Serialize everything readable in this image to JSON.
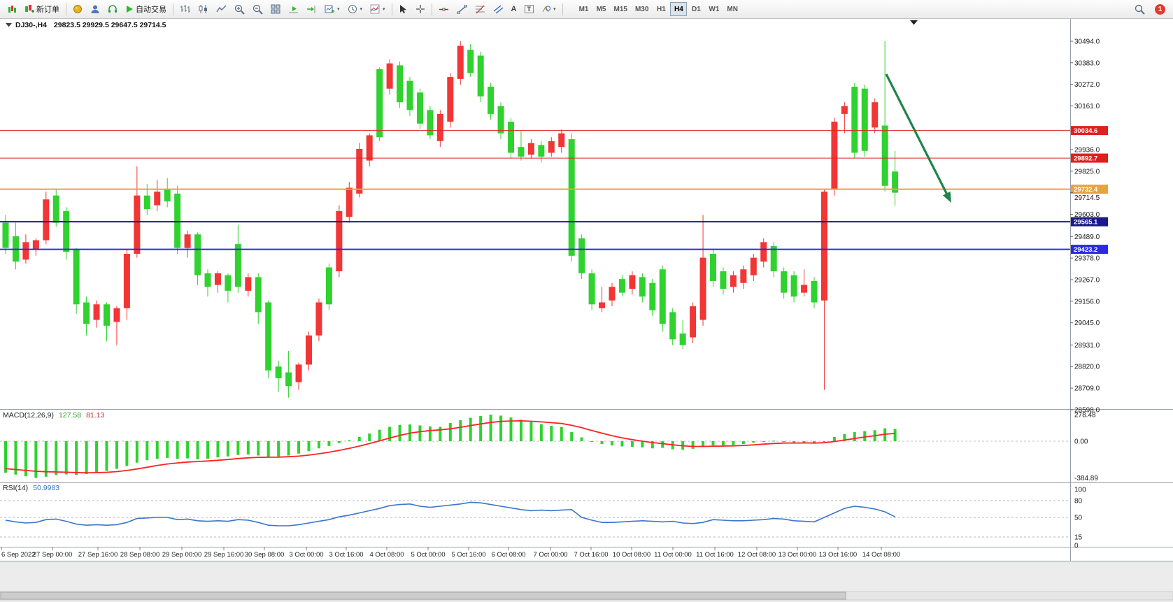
{
  "toolbar": {
    "new_order": "新订单",
    "auto_trading": "自动交易",
    "timeframes": [
      "M1",
      "M5",
      "M15",
      "M30",
      "H1",
      "H4",
      "D1",
      "W1",
      "MN"
    ],
    "active_timeframe": "H4",
    "notification_count": "1"
  },
  "icons": {
    "chevron": "▾",
    "letter_a": "A",
    "letter_t": "T"
  },
  "chart": {
    "symbol": "DJ30-,H4",
    "ohlc": "29823.5 29929.5 29647.5 29714.5"
  },
  "macd": {
    "name": "MACD(12,26,9)",
    "main": "127.58",
    "signal": "81.13"
  },
  "rsi": {
    "name": "RSI(14)",
    "value": "50.9983"
  },
  "colors": {
    "candle_up": "#f23535",
    "candle_down": "#2fd22f",
    "macd_hist": "#2fd22f",
    "macd_signal": "#ff2222",
    "rsi_line": "#3a76c9",
    "level_red": "#e01f1f",
    "level_orange": "#e8a33d",
    "level_navy": "#1a1a8c",
    "level_blue": "#2a2ae0",
    "arrow_green": "#1e8449"
  },
  "price_axis": {
    "ticks": [
      "30494.0",
      "30383.0",
      "30272.0",
      "30161.0",
      "29936.0",
      "29825.0",
      "29714.5",
      "29603.0",
      "29489.0",
      "29378.0",
      "29267.0",
      "29156.0",
      "29045.0",
      "28931.0",
      "28820.0",
      "28709.0",
      "28598.0"
    ]
  },
  "time_axis": [
    [
      "6 Sep 2022",
      2
    ],
    [
      "27 Sep 00:00",
      75
    ],
    [
      "27 Sep 16:00",
      140
    ],
    [
      "28 Sep 08:00",
      200
    ],
    [
      "29 Sep 00:00",
      260
    ],
    [
      "29 Sep 16:00",
      320
    ],
    [
      "30 Sep 08:00",
      378
    ],
    [
      "3 Oct 00:00",
      438
    ],
    [
      "3 Oct 16:00",
      495
    ],
    [
      "4 Oct 08:00",
      553
    ],
    [
      "5 Oct 00:00",
      612
    ],
    [
      "5 Oct 16:00",
      670
    ],
    [
      "6 Oct 08:00",
      727
    ],
    [
      "7 Oct 00:00",
      787
    ],
    [
      "7 Oct 16:00",
      845
    ],
    [
      "10 Oct 08:00",
      903
    ],
    [
      "11 Oct 00:00",
      962
    ],
    [
      "11 Oct 16:00",
      1022
    ],
    [
      "12 Oct 08:00",
      1082
    ],
    [
      "13 Oct 00:00",
      1140
    ],
    [
      "13 Oct 16:00",
      1198
    ],
    [
      "14 Oct 08:00",
      1260
    ]
  ],
  "chart_data": [
    {
      "type": "candlestick",
      "symbol": "DJ30-",
      "timeframe": "H4",
      "ohlc_current": {
        "open": 29823.5,
        "high": 29929.5,
        "low": 29647.5,
        "close": 29714.5
      },
      "price_axis_range": [
        28601,
        30609
      ],
      "levels": [
        {
          "price": 30034.6,
          "color": "#e01f1f",
          "width": 1
        },
        {
          "price": 29892.7,
          "color": "#e01f1f",
          "width": 1
        },
        {
          "price": 29732.4,
          "color": "#e8a33d",
          "width": 2
        },
        {
          "price": 29565.1,
          "color": "#1a1a8c",
          "width": 2
        },
        {
          "price": 29423.2,
          "color": "#2a2ae0",
          "width": 2
        }
      ],
      "arrow": {
        "from": [
          1267,
          106
        ],
        "to": [
          1360,
          290
        ],
        "color": "#1e8449"
      },
      "candles": [
        [
          29600,
          29400,
          29560,
          29430,
          "g"
        ],
        [
          29560,
          29320,
          29490,
          29360,
          "g"
        ],
        [
          29500,
          29350,
          29460,
          29370,
          "r"
        ],
        [
          29480,
          29390,
          29470,
          29420,
          "r"
        ],
        [
          29720,
          29450,
          29680,
          29470,
          "r"
        ],
        [
          29730,
          29540,
          29700,
          29560,
          "g"
        ],
        [
          29640,
          29370,
          29620,
          29410,
          "g"
        ],
        [
          29430,
          29090,
          29420,
          29140,
          "g"
        ],
        [
          29180,
          28980,
          29150,
          29040,
          "g"
        ],
        [
          29160,
          29020,
          29140,
          29060,
          "r"
        ],
        [
          29150,
          28950,
          29140,
          29030,
          "g"
        ],
        [
          29130,
          28930,
          29120,
          29050,
          "r"
        ],
        [
          29420,
          29060,
          29400,
          29120,
          "r"
        ],
        [
          29850,
          29380,
          29700,
          29400,
          "r"
        ],
        [
          29760,
          29600,
          29700,
          29630,
          "g"
        ],
        [
          29780,
          29620,
          29720,
          29650,
          "r"
        ],
        [
          29790,
          29640,
          29730,
          29670,
          "g"
        ],
        [
          29750,
          29400,
          29710,
          29430,
          "g"
        ],
        [
          29520,
          29380,
          29500,
          29430,
          "r"
        ],
        [
          29510,
          29240,
          29500,
          29290,
          "g"
        ],
        [
          29320,
          29180,
          29300,
          29230,
          "g"
        ],
        [
          29310,
          29200,
          29300,
          29240,
          "r"
        ],
        [
          29300,
          29150,
          29290,
          29210,
          "g"
        ],
        [
          29550,
          29200,
          29450,
          29230,
          "g"
        ],
        [
          29300,
          29180,
          29280,
          29210,
          "r"
        ],
        [
          29300,
          29040,
          29280,
          29100,
          "g"
        ],
        [
          29160,
          28760,
          29150,
          28800,
          "g"
        ],
        [
          28850,
          28690,
          28820,
          28760,
          "g"
        ],
        [
          28900,
          28660,
          28790,
          28720,
          "g"
        ],
        [
          28840,
          28700,
          28830,
          28740,
          "r"
        ],
        [
          29000,
          28800,
          28980,
          28830,
          "r"
        ],
        [
          29170,
          28950,
          29150,
          28980,
          "r"
        ],
        [
          29350,
          29110,
          29330,
          29140,
          "g"
        ],
        [
          29650,
          29280,
          29620,
          29310,
          "r"
        ],
        [
          29770,
          29560,
          29740,
          29590,
          "r"
        ],
        [
          29970,
          29690,
          29940,
          29710,
          "r"
        ],
        [
          30020,
          29850,
          30010,
          29880,
          "r"
        ],
        [
          30360,
          29980,
          30350,
          30000,
          "g"
        ],
        [
          30400,
          30220,
          30380,
          30250,
          "r"
        ],
        [
          30390,
          30150,
          30370,
          30180,
          "g"
        ],
        [
          30310,
          30110,
          30290,
          30140,
          "g"
        ],
        [
          30250,
          30040,
          30230,
          30070,
          "g"
        ],
        [
          30160,
          29990,
          30140,
          30010,
          "g"
        ],
        [
          30140,
          29950,
          30120,
          29980,
          "r"
        ],
        [
          30330,
          30050,
          30310,
          30080,
          "r"
        ],
        [
          30494,
          30270,
          30470,
          30300,
          "r"
        ],
        [
          30480,
          30310,
          30450,
          30330,
          "g"
        ],
        [
          30440,
          30180,
          30420,
          30210,
          "g"
        ],
        [
          30280,
          30090,
          30260,
          30120,
          "g"
        ],
        [
          30180,
          29990,
          30160,
          30020,
          "g"
        ],
        [
          30100,
          29890,
          30080,
          29920,
          "g"
        ],
        [
          30030,
          29880,
          29950,
          29900,
          "g"
        ],
        [
          29990,
          29890,
          29970,
          29910,
          "r"
        ],
        [
          29980,
          29870,
          29960,
          29900,
          "g"
        ],
        [
          30000,
          29900,
          29980,
          29920,
          "r"
        ],
        [
          30040,
          29920,
          30020,
          29950,
          "r"
        ],
        [
          30020,
          29360,
          29990,
          29390,
          "g"
        ],
        [
          29500,
          29270,
          29480,
          29300,
          "g"
        ],
        [
          29320,
          29110,
          29300,
          29140,
          "g"
        ],
        [
          29230,
          29100,
          29150,
          29120,
          "r"
        ],
        [
          29250,
          29130,
          29230,
          29160,
          "r"
        ],
        [
          29290,
          29180,
          29270,
          29200,
          "g"
        ],
        [
          29310,
          29190,
          29290,
          29220,
          "r"
        ],
        [
          29300,
          29150,
          29280,
          29180,
          "g"
        ],
        [
          29270,
          29080,
          29250,
          29110,
          "g"
        ],
        [
          29340,
          29000,
          29320,
          29040,
          "g"
        ],
        [
          29120,
          28930,
          29100,
          28960,
          "g"
        ],
        [
          29060,
          28910,
          28990,
          28930,
          "g"
        ],
        [
          29150,
          28940,
          29130,
          28970,
          "r"
        ],
        [
          29600,
          29030,
          29380,
          29060,
          "r"
        ],
        [
          29420,
          29230,
          29400,
          29260,
          "g"
        ],
        [
          29330,
          29190,
          29310,
          29220,
          "g"
        ],
        [
          29310,
          29200,
          29290,
          29230,
          "r"
        ],
        [
          29340,
          29220,
          29320,
          29250,
          "r"
        ],
        [
          29400,
          29260,
          29380,
          29290,
          "r"
        ],
        [
          29480,
          29330,
          29460,
          29360,
          "r"
        ],
        [
          29460,
          29280,
          29440,
          29310,
          "g"
        ],
        [
          29330,
          29170,
          29310,
          29200,
          "g"
        ],
        [
          29310,
          29150,
          29290,
          29180,
          "g"
        ],
        [
          29320,
          29180,
          29240,
          29200,
          "r"
        ],
        [
          29280,
          29120,
          29260,
          29150,
          "g"
        ],
        [
          29730,
          28700,
          29720,
          29160,
          "r"
        ],
        [
          30100,
          29700,
          30080,
          29730,
          "r"
        ],
        [
          30180,
          30020,
          30160,
          30120,
          "r"
        ],
        [
          30280,
          29890,
          30260,
          29920,
          "g"
        ],
        [
          30270,
          29900,
          30250,
          29930,
          "g"
        ],
        [
          30200,
          30020,
          30180,
          30050,
          "r"
        ],
        [
          30494,
          29720,
          30060,
          29750,
          "g"
        ],
        [
          29929.5,
          29647.5,
          29823.5,
          29714.5,
          "g"
        ]
      ]
    },
    {
      "type": "bar",
      "name": "MACD(12,26,9)",
      "axis_labels": [
        "278.48",
        "0.00",
        "-384.89"
      ],
      "values": [
        -330,
        -350,
        -368,
        -384.89,
        -372,
        -355,
        -348,
        -352,
        -345,
        -330,
        -312,
        -290,
        -260,
        -225,
        -200,
        -185,
        -175,
        -185,
        -180,
        -190,
        -185,
        -170,
        -160,
        -145,
        -140,
        -150,
        -165,
        -160,
        -150,
        -130,
        -105,
        -75,
        -50,
        -20,
        10,
        45,
        80,
        120,
        150,
        170,
        175,
        165,
        155,
        150,
        190,
        220,
        245,
        265,
        278.48,
        268,
        248,
        225,
        200,
        178,
        162,
        150,
        95,
        40,
        -5,
        -30,
        -45,
        -55,
        -60,
        -65,
        -75,
        -70,
        -85,
        -90,
        -80,
        -55,
        -45,
        -45,
        -40,
        -30,
        -15,
        0,
        5,
        -5,
        -15,
        -15,
        -25,
        0,
        45,
        75,
        95,
        105,
        115,
        135,
        127.58
      ],
      "signal_line": [
        -288,
        -297,
        -307,
        -315,
        -320,
        -322,
        -325,
        -329,
        -331,
        -330,
        -326,
        -319,
        -307,
        -291,
        -273,
        -255,
        -239,
        -228,
        -218,
        -213,
        -207,
        -200,
        -192,
        -182,
        -174,
        -169,
        -168,
        -167,
        -163,
        -157,
        -146,
        -132,
        -116,
        -96,
        -75,
        -51,
        -25,
        4,
        33,
        61,
        84,
        100,
        111,
        119,
        130,
        146,
        164,
        181,
        196,
        207,
        212,
        213,
        209,
        202,
        194,
        185,
        167,
        142,
        112,
        84,
        58,
        35,
        16,
        0,
        -15,
        -26,
        -38,
        -48,
        -55,
        -55,
        -53,
        -51,
        -49,
        -45,
        -39,
        -31,
        -24,
        -20,
        -19,
        -18,
        -20,
        -16,
        -4,
        12,
        28,
        44,
        58,
        73,
        81.13
      ]
    },
    {
      "type": "line",
      "name": "RSI(14)",
      "levels": [
        80,
        50,
        15
      ],
      "axis_labels": [
        "100",
        "80",
        "50",
        "15",
        "0"
      ],
      "values": [
        45,
        42,
        40,
        41,
        46,
        47,
        43,
        38,
        36,
        37,
        36,
        37,
        41,
        48,
        49,
        50,
        50,
        46,
        47,
        44,
        43,
        44,
        43,
        46,
        45,
        41,
        36,
        35,
        35,
        37,
        40,
        43,
        46,
        51,
        54,
        58,
        62,
        66,
        71,
        73,
        74,
        70,
        68,
        70,
        72,
        74,
        77,
        76,
        73,
        70,
        67,
        64,
        62,
        63,
        62,
        63,
        64,
        50,
        45,
        41,
        41,
        42,
        43,
        44,
        43,
        42,
        43,
        40,
        39,
        41,
        46,
        45,
        44,
        44,
        45,
        46,
        48,
        47,
        44,
        43,
        42,
        50,
        58,
        66,
        70,
        68,
        65,
        60,
        51
      ]
    }
  ]
}
